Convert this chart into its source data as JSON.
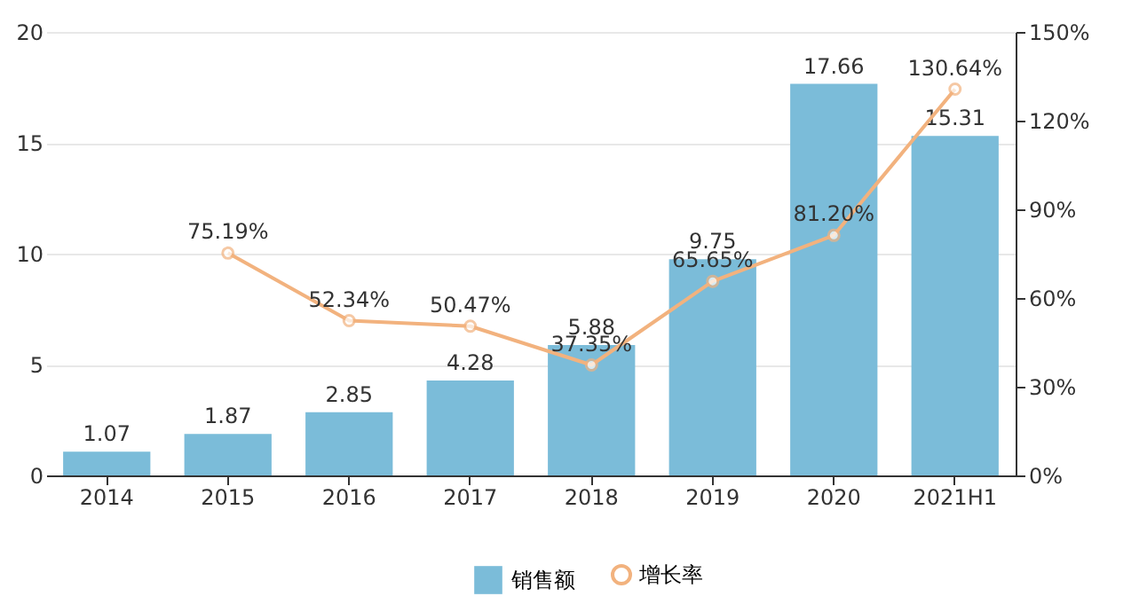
{
  "chart_data": {
    "type": "bar",
    "categories": [
      "2014",
      "2015",
      "2016",
      "2017",
      "2018",
      "2019",
      "2020",
      "2021H1"
    ],
    "series": [
      {
        "name": "销售额",
        "color": "#7bbcd9",
        "values": [
          1.07,
          1.87,
          2.85,
          4.28,
          5.88,
          9.75,
          17.66,
          15.31
        ],
        "value_labels": [
          "1.07",
          "1.87",
          "2.85",
          "4.28",
          "5.88",
          "9.75",
          "17.66",
          "15.31"
        ]
      },
      {
        "name": "增长率",
        "type": "line",
        "axis": "y2",
        "color": "#f2b27e",
        "values": [
          null,
          75.19,
          52.34,
          50.47,
          37.35,
          65.65,
          81.2,
          130.64
        ],
        "value_labels": [
          null,
          "75.19%",
          "52.34%",
          "50.47%",
          "37.35%",
          "65.65%",
          "81.20%",
          "130.64%"
        ]
      }
    ],
    "ylim": [
      0,
      20
    ],
    "yticks": [
      0,
      5,
      10,
      15,
      20
    ],
    "y2lim": [
      0,
      150
    ],
    "y2ticks": [
      {
        "value": 0,
        "label": "0%"
      },
      {
        "value": 30,
        "label": "30%"
      },
      {
        "value": 60,
        "label": "60%"
      },
      {
        "value": 90,
        "label": "90%"
      },
      {
        "value": 120,
        "label": "120%"
      },
      {
        "value": 150,
        "label": "150%"
      }
    ],
    "grid": "y",
    "legend": "bottom",
    "marker": "circle",
    "line_style": "solid"
  }
}
